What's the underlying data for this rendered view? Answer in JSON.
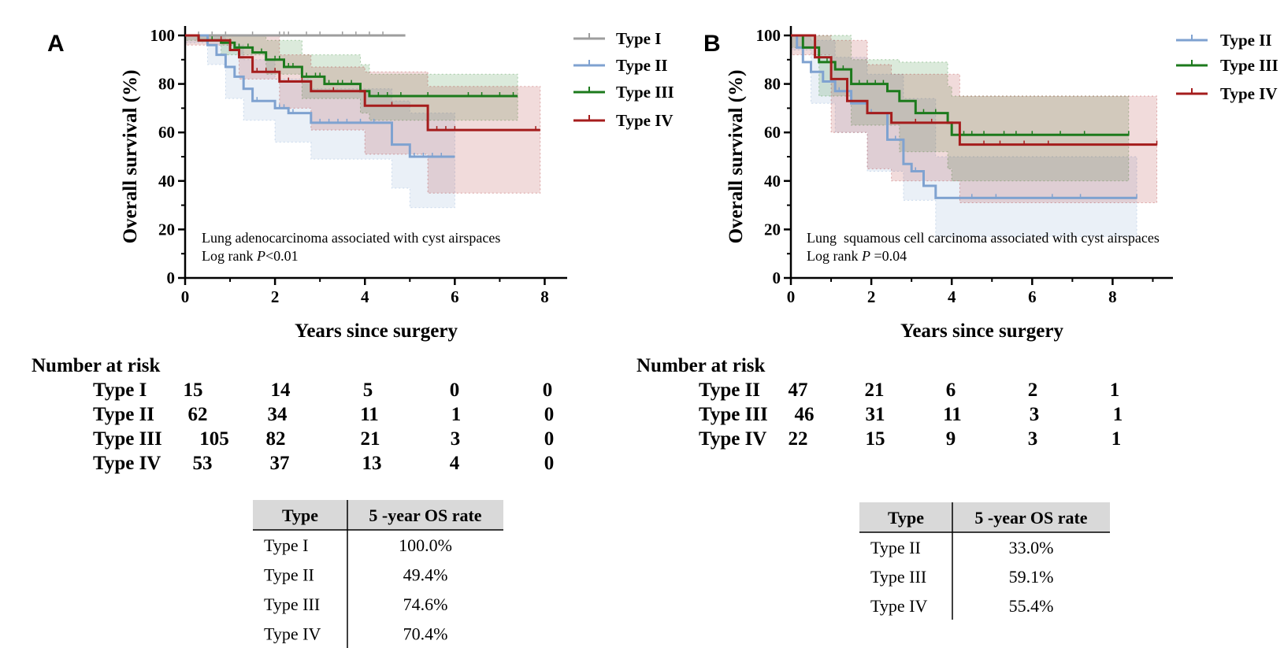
{
  "chart_data": [
    {
      "panel": "A",
      "type": "line",
      "subtype": "kaplan-meier",
      "title": "",
      "annotation": [
        "Lung adenocarcinoma associated with cyst airspaces",
        "Log rank P<0.01"
      ],
      "annotation_parts": {
        "line2_prefix": "Log rank ",
        "line2_p": "P",
        "line2_suffix": "<0.01"
      },
      "xlabel": "Years since surgery",
      "ylabel": "Overall survival (%)",
      "xlim": [
        0,
        8.5
      ],
      "ylim": [
        0,
        100
      ],
      "xticks": [
        0,
        2,
        4,
        6,
        8
      ],
      "yticks": [
        0,
        20,
        40,
        60,
        80,
        100
      ],
      "legend_position": "top-right",
      "series": [
        {
          "name": "Type I",
          "color": "#9e9e9e",
          "x": [
            0,
            4.9
          ],
          "y": [
            100,
            100
          ],
          "ci_x": [],
          "ci_lo": [],
          "ci_hi": [],
          "censor": [
            0.3,
            0.6,
            0.9,
            1.5,
            2.1,
            2.2,
            2.3,
            2.7,
            3.0,
            3.5,
            3.8,
            4.1,
            4.4
          ]
        },
        {
          "name": "Type II",
          "color": "#7fa2d0",
          "x": [
            0,
            0.5,
            0.7,
            0.9,
            1.1,
            1.3,
            1.5,
            2.0,
            2.3,
            2.8,
            4.6,
            5.0,
            6.0
          ],
          "y": [
            100,
            96,
            92,
            87,
            83,
            78,
            73,
            70,
            68,
            64,
            55,
            50,
            50
          ],
          "ci_x": [
            0,
            0.5,
            0.9,
            1.3,
            2.0,
            2.8,
            4.6,
            5.0,
            6.0
          ],
          "ci_lo": [
            97,
            88,
            74,
            65,
            56,
            49,
            37,
            29,
            29
          ],
          "ci_hi": [
            100,
            100,
            96,
            90,
            82,
            78,
            73,
            68,
            68
          ],
          "censor": [
            1.6,
            2.1,
            2.2,
            2.4,
            3.0,
            3.2,
            3.4,
            3.6,
            3.9,
            4.2,
            5.1,
            5.3,
            5.5,
            5.7
          ]
        },
        {
          "name": "Type III",
          "color": "#1c7a1c",
          "x": [
            0,
            0.3,
            0.8,
            1.1,
            1.5,
            1.8,
            2.2,
            2.6,
            3.1,
            3.9,
            4.1,
            7.4
          ],
          "y": [
            100,
            98,
            97,
            95,
            93,
            90,
            87,
            83,
            80,
            77,
            75,
            75
          ],
          "ci_x": [
            0,
            0.8,
            1.8,
            2.6,
            3.9,
            4.1,
            7.4
          ],
          "ci_lo": [
            98,
            92,
            84,
            74,
            68,
            65,
            65
          ],
          "ci_hi": [
            100,
            100,
            98,
            92,
            88,
            84,
            84
          ],
          "censor": [
            0.6,
            1.0,
            1.2,
            1.4,
            1.7,
            2.0,
            2.1,
            2.3,
            2.4,
            2.7,
            2.9,
            3.0,
            3.2,
            3.4,
            3.5,
            3.7,
            4.3,
            4.5,
            4.8,
            5.4,
            6.3,
            6.6,
            7.0,
            7.3
          ]
        },
        {
          "name": "Type IV",
          "color": "#a51c1c",
          "x": [
            0,
            0.3,
            1.0,
            1.2,
            1.5,
            2.1,
            2.8,
            4.0,
            5.4,
            7.9
          ],
          "y": [
            100,
            98,
            94,
            91,
            85,
            81,
            77,
            71,
            61,
            61
          ],
          "ci_x": [
            0,
            1.2,
            2.1,
            2.8,
            4.0,
            5.4,
            7.9
          ],
          "ci_lo": [
            96,
            82,
            70,
            61,
            51,
            35,
            35
          ],
          "ci_hi": [
            100,
            100,
            92,
            87,
            85,
            79,
            79
          ],
          "censor": [
            0.8,
            1.6,
            1.8,
            2.0,
            2.3,
            2.6,
            3.3,
            4.6,
            5.6,
            5.8,
            6.0,
            7.8
          ]
        }
      ],
      "legend": [
        {
          "label": "Type I",
          "color": "#9e9e9e"
        },
        {
          "label": "Type II",
          "color": "#7fa2d0"
        },
        {
          "label": "Type III",
          "color": "#1c7a1c"
        },
        {
          "label": "Type IV",
          "color": "#a51c1c"
        }
      ]
    },
    {
      "panel": "B",
      "type": "line",
      "subtype": "kaplan-meier",
      "title": "",
      "annotation": [
        "Lung  squamous cell carcinoma associated with cyst airspaces",
        "Log rank P =0.04"
      ],
      "annotation_parts": {
        "line2_prefix": "Log rank ",
        "line2_p": "P",
        "line2_suffix": " =0.04"
      },
      "xlabel": "Years since surgery",
      "ylabel": "Overall survival (%)",
      "xlim": [
        0,
        9.5
      ],
      "ylim": [
        0,
        100
      ],
      "xticks": [
        0,
        2,
        4,
        6,
        8
      ],
      "yticks": [
        0,
        20,
        40,
        60,
        80,
        100
      ],
      "legend_position": "top-right",
      "series": [
        {
          "name": "Type II",
          "color": "#7fa2d0",
          "x": [
            0,
            0.15,
            0.3,
            0.5,
            0.8,
            1.1,
            1.5,
            1.9,
            2.4,
            2.8,
            3.0,
            3.3,
            3.6,
            8.6
          ],
          "y": [
            100,
            95,
            89,
            85,
            81,
            77,
            72,
            68,
            57,
            47,
            44,
            38,
            33,
            33
          ],
          "ci_x": [
            0,
            0.5,
            1.1,
            1.9,
            2.8,
            3.6,
            8.6
          ],
          "ci_lo": [
            94,
            72,
            60,
            44,
            32,
            17,
            17
          ],
          "ci_hi": [
            100,
            98,
            91,
            84,
            74,
            50,
            50
          ],
          "censor": [
            1.2,
            2.0,
            2.6,
            3.1,
            4.5,
            5.1,
            6.5,
            7.2,
            8.6
          ]
        },
        {
          "name": "Type III",
          "color": "#1c7a1c",
          "x": [
            0,
            0.3,
            0.7,
            1.1,
            1.5,
            2.4,
            2.7,
            3.1,
            3.9,
            4.0,
            8.4
          ],
          "y": [
            100,
            95,
            89,
            86,
            80,
            77,
            73,
            68,
            64,
            59,
            59
          ],
          "ci_x": [
            0,
            0.7,
            1.5,
            2.7,
            3.9,
            4.0,
            8.4
          ],
          "ci_lo": [
            95,
            75,
            63,
            52,
            45,
            40,
            40
          ],
          "ci_hi": [
            100,
            100,
            90,
            89,
            79,
            75,
            75
          ],
          "censor": [
            0.9,
            1.3,
            1.7,
            1.9,
            2.1,
            2.3,
            3.3,
            3.6,
            4.3,
            4.5,
            4.8,
            5.3,
            5.6,
            6.0,
            6.7,
            7.3,
            8.4
          ]
        },
        {
          "name": "Type IV",
          "color": "#a51c1c",
          "x": [
            0,
            0.6,
            1.0,
            1.4,
            1.9,
            2.5,
            4.2,
            9.1
          ],
          "y": [
            100,
            91,
            82,
            73,
            68,
            64,
            55,
            55
          ],
          "ci_x": [
            0,
            1.0,
            1.9,
            2.5,
            4.2,
            9.1
          ],
          "ci_lo": [
            92,
            60,
            45,
            40,
            31,
            31
          ],
          "ci_hi": [
            100,
            98,
            88,
            84,
            75,
            75
          ],
          "censor": [
            3.1,
            3.5,
            4.8,
            5.2,
            5.8,
            6.4,
            9.1
          ]
        }
      ],
      "legend": [
        {
          "label": "Type II",
          "color": "#7fa2d0"
        },
        {
          "label": "Type III",
          "color": "#1c7a1c"
        },
        {
          "label": "Type IV",
          "color": "#a51c1c"
        }
      ]
    }
  ],
  "risk_tables": [
    {
      "panel": "A",
      "title": "Number at risk",
      "rows": [
        {
          "label": "Type I",
          "values": [
            "15",
            "14",
            "5",
            "0",
            "0"
          ]
        },
        {
          "label": "Type II",
          "values": [
            "62",
            "34",
            "11",
            "1",
            "0"
          ]
        },
        {
          "label": "Type III",
          "values": [
            "105",
            "82",
            "21",
            "3",
            "0"
          ]
        },
        {
          "label": "Type IV",
          "values": [
            "53",
            "37",
            "13",
            "4",
            "0"
          ]
        }
      ]
    },
    {
      "panel": "B",
      "title": "Number at risk",
      "rows": [
        {
          "label": "Type II",
          "values": [
            "47",
            "21",
            "6",
            "2",
            "1"
          ]
        },
        {
          "label": "Type III",
          "values": [
            "46",
            "31",
            "11",
            "3",
            "1"
          ]
        },
        {
          "label": "Type IV",
          "values": [
            "22",
            "15",
            "9",
            "3",
            "1"
          ]
        }
      ]
    }
  ],
  "os_tables": [
    {
      "panel": "A",
      "headers": [
        "Type",
        "5 -year OS rate"
      ],
      "rows": [
        [
          "Type I",
          "100.0%"
        ],
        [
          "Type II",
          "49.4%"
        ],
        [
          "Type III",
          "74.6%"
        ],
        [
          "Type IV",
          "70.4%"
        ]
      ]
    },
    {
      "panel": "B",
      "headers": [
        "Type",
        "5 -year OS rate"
      ],
      "rows": [
        [
          "Type II",
          "33.0%"
        ],
        [
          "Type III",
          "59.1%"
        ],
        [
          "Type IV",
          "55.4%"
        ]
      ]
    }
  ]
}
